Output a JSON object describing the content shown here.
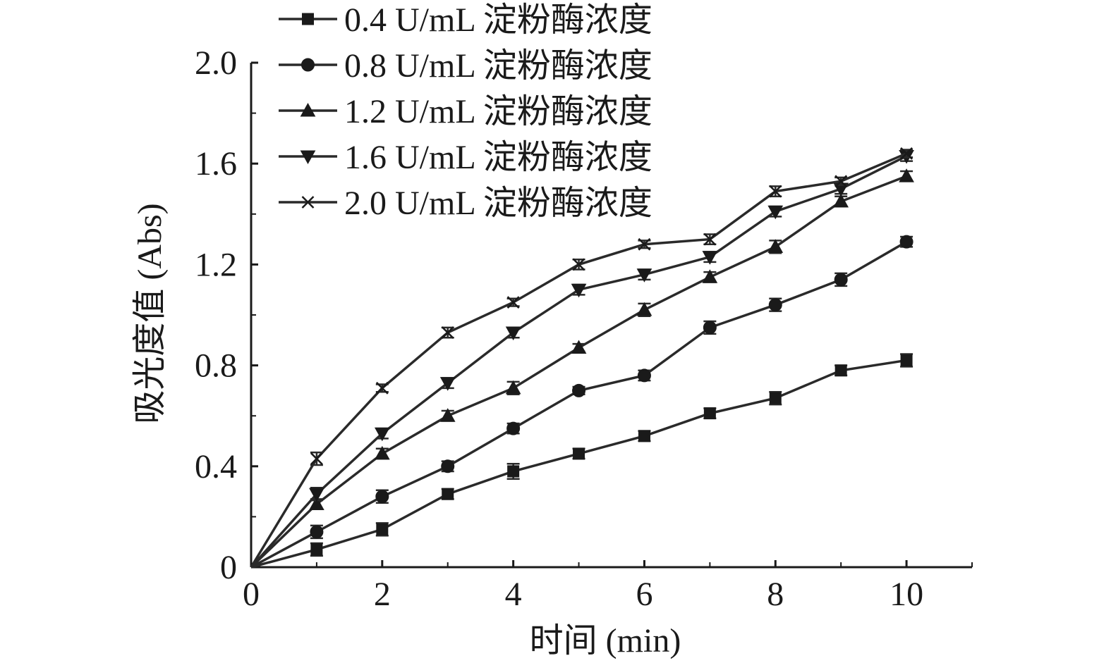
{
  "chart_data": {
    "type": "line",
    "xlabel": "时间 (min)",
    "ylabel": "吸光度值 (Abs)",
    "xlim": [
      0,
      11
    ],
    "ylim": [
      0,
      2.0
    ],
    "x_ticks": [
      "0",
      "2",
      "4",
      "6",
      "8",
      "10"
    ],
    "x_tick_values": [
      0,
      2,
      4,
      6,
      8,
      10
    ],
    "y_ticks": [
      "0",
      "0.4",
      "0.8",
      "1.2",
      "1.6",
      "2.0"
    ],
    "y_tick_values": [
      0,
      0.4,
      0.8,
      1.2,
      1.6,
      2.0
    ],
    "grid": false,
    "legend_position": "top-left",
    "x": [
      0,
      1,
      2,
      3,
      4,
      5,
      6,
      7,
      8,
      9,
      10
    ],
    "series": [
      {
        "name": "0.4 U/mL 淀粉酶浓度",
        "marker": "square",
        "values": [
          0,
          0.07,
          0.15,
          0.29,
          0.38,
          0.45,
          0.52,
          0.61,
          0.67,
          0.78,
          0.82
        ],
        "errors": [
          0,
          0.025,
          0.025,
          0.02,
          0.03,
          0.02,
          0.02,
          0.02,
          0.025,
          0.02,
          0.025
        ]
      },
      {
        "name": "0.8 U/mL 淀粉酶浓度",
        "marker": "circle",
        "values": [
          0,
          0.14,
          0.28,
          0.4,
          0.55,
          0.7,
          0.76,
          0.95,
          1.04,
          1.14,
          1.29
        ],
        "errors": [
          0,
          0.025,
          0.025,
          0.02,
          0.02,
          0.015,
          0.02,
          0.025,
          0.025,
          0.025,
          0.02
        ]
      },
      {
        "name": "1.2 U/mL 淀粉酶浓度",
        "marker": "triangle-up",
        "values": [
          0,
          0.25,
          0.45,
          0.6,
          0.71,
          0.87,
          1.02,
          1.15,
          1.27,
          1.45,
          1.55
        ],
        "errors": [
          0,
          0.02,
          0.02,
          0.02,
          0.025,
          0.015,
          0.025,
          0.02,
          0.025,
          0.02,
          0.02
        ]
      },
      {
        "name": "1.6 U/mL 淀粉酶浓度",
        "marker": "triangle-down",
        "values": [
          0,
          0.29,
          0.53,
          0.73,
          0.93,
          1.1,
          1.16,
          1.23,
          1.41,
          1.5,
          1.63
        ],
        "errors": [
          0,
          0.025,
          0.02,
          0.02,
          0.02,
          0.02,
          0.02,
          0.02,
          0.02,
          0.02,
          0.02
        ]
      },
      {
        "name": "2.0 U/mL 淀粉酶浓度",
        "marker": "x",
        "values": [
          0,
          0.43,
          0.71,
          0.93,
          1.05,
          1.2,
          1.28,
          1.3,
          1.49,
          1.53,
          1.64
        ],
        "errors": [
          0,
          0.025,
          0.015,
          0.02,
          0.015,
          0.02,
          0.015,
          0.02,
          0.02,
          0.015,
          0.015
        ]
      }
    ],
    "line_color": "#2a2a2a",
    "marker_color": "#1a1a1a"
  }
}
